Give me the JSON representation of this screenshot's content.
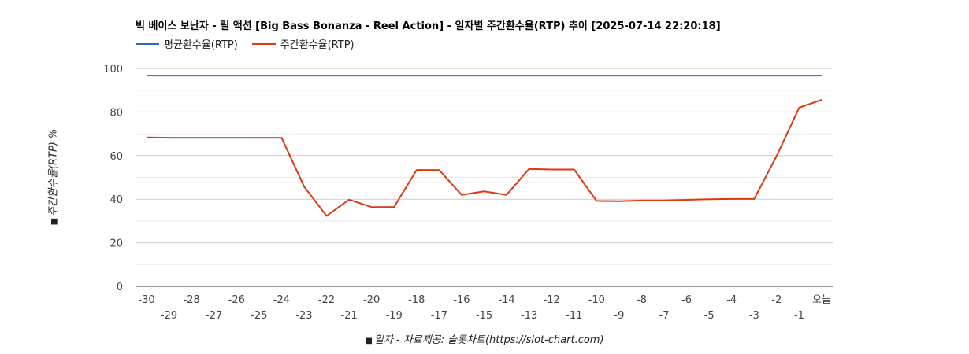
{
  "chart_data": {
    "type": "line",
    "title": "빅 베이스 보난자 - 릴 액션 [Big Bass Bonanza - Reel Action] - 일자별 주간환수율(RTP) 추이 [2025-07-14 22:20:18]",
    "xlabel": "일자 - 자료제공: 슬롯차트(https://slot-chart.com)",
    "ylabel": "주간환수율(RTP) %",
    "ylim": [
      0,
      100
    ],
    "yticks": [
      "0",
      "20",
      "40",
      "60",
      "80",
      "100"
    ],
    "grid": true,
    "legend_position": "top-left",
    "x": [
      "-30",
      "-29",
      "-28",
      "-27",
      "-26",
      "-25",
      "-24",
      "-23",
      "-22",
      "-21",
      "-20",
      "-19",
      "-18",
      "-17",
      "-16",
      "-15",
      "-14",
      "-13",
      "-12",
      "-11",
      "-10",
      "-9",
      "-8",
      "-7",
      "-6",
      "-5",
      "-4",
      "-3",
      "-2",
      "-1",
      "오늘"
    ],
    "series": [
      {
        "name": "평균환수율(RTP)",
        "color": "#3366cc",
        "values": [
          96.7,
          96.7,
          96.7,
          96.7,
          96.7,
          96.7,
          96.7,
          96.7,
          96.7,
          96.7,
          96.7,
          96.7,
          96.7,
          96.7,
          96.7,
          96.7,
          96.7,
          96.7,
          96.7,
          96.7,
          96.7,
          96.7,
          96.7,
          96.7,
          96.7,
          96.7,
          96.7,
          96.7,
          96.7,
          96.7,
          96.7
        ]
      },
      {
        "name": "주간환수율(RTP)",
        "color": "#dc3912",
        "values": [
          68.3,
          68.2,
          68.2,
          68.2,
          68.2,
          68.2,
          68.2,
          45.8,
          32.3,
          39.8,
          36.4,
          36.4,
          53.4,
          53.4,
          42.0,
          43.6,
          42.0,
          53.9,
          53.6,
          53.6,
          39.2,
          39.1,
          39.4,
          39.4,
          39.7,
          40.0,
          40.1,
          40.1,
          59.9,
          82.0,
          85.6
        ]
      }
    ]
  }
}
